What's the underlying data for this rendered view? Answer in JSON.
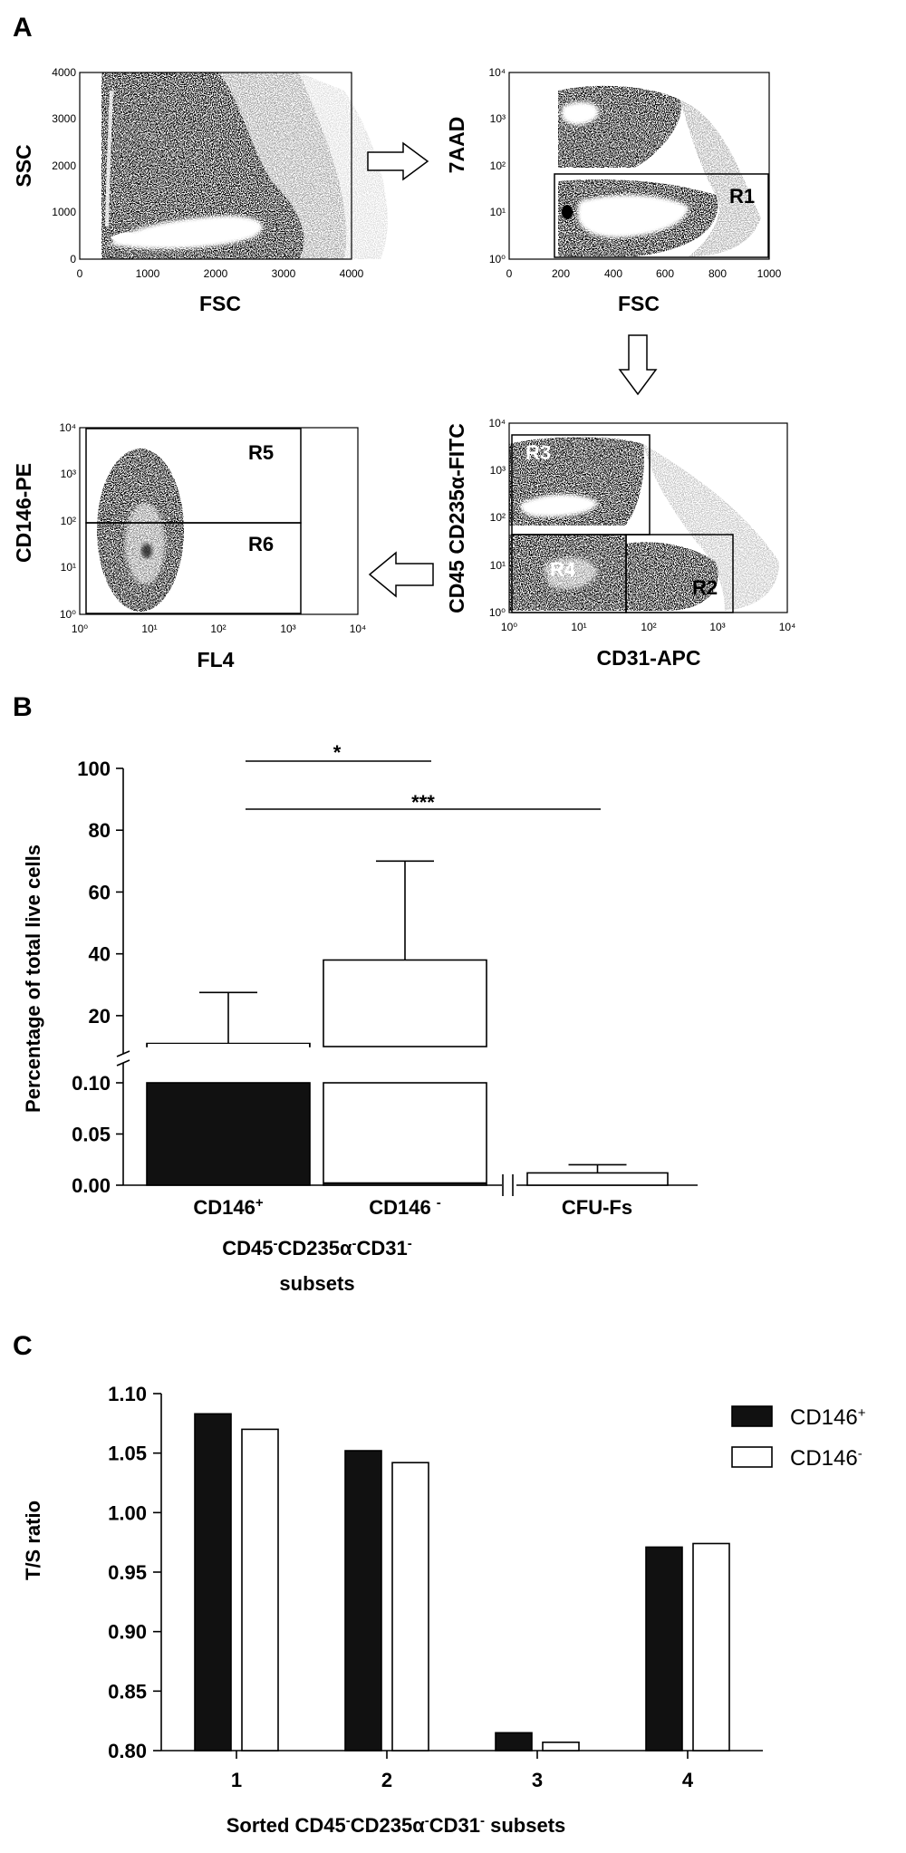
{
  "panels": {
    "a": "A",
    "b": "B",
    "c": "C"
  },
  "flow_plots": [
    {
      "id": "fsc-ssc",
      "x_label": "FSC",
      "y_label": "SSC",
      "x_ticks": [
        "0",
        "1000",
        "2000",
        "3000",
        "4000"
      ],
      "y_ticks": [
        "0",
        "1000",
        "2000",
        "3000",
        "4000"
      ],
      "gates": []
    },
    {
      "id": "fsc-7aad",
      "x_label": "FSC",
      "y_label": "7AAD",
      "x_ticks": [
        "0",
        "200",
        "400",
        "600",
        "800",
        "1000"
      ],
      "y_ticks": [
        "10⁰",
        "10¹",
        "10²",
        "10³",
        "10⁴"
      ],
      "gates": [
        "R1"
      ]
    },
    {
      "id": "cd31-cd45",
      "x_label": "CD31-APC",
      "y_label": "CD45 CD235α-FITC",
      "x_ticks": [
        "10⁰",
        "10¹",
        "10²",
        "10³",
        "10⁴"
      ],
      "y_ticks": [
        "10⁰",
        "10¹",
        "10²",
        "10³",
        "10⁴"
      ],
      "gates": [
        "R3",
        "R4",
        "R2"
      ]
    },
    {
      "id": "fl4-cd146",
      "x_label": "FL4",
      "y_label": "CD146-PE",
      "x_ticks": [
        "10⁰",
        "10¹",
        "10²",
        "10³",
        "10⁴"
      ],
      "y_ticks": [
        "10⁰",
        "10¹",
        "10²",
        "10³",
        "10⁴"
      ],
      "gates": [
        "R5",
        "R6"
      ]
    }
  ],
  "chart_data": [
    {
      "type": "bar",
      "ylabel": "Percentage of total live cells",
      "categories": [
        {
          "name": "CD146",
          "sup": "+"
        },
        {
          "name": "CD146 ",
          "sup": "-"
        },
        {
          "name": "CFU-Fs",
          "sup": ""
        }
      ],
      "values": [
        11.0,
        38.0,
        0.012
      ],
      "errors_upper": [
        27.5,
        70.0,
        0.02
      ],
      "y_ticks_lower": [
        "0.00",
        "0.05",
        "0.10"
      ],
      "y_ticks_upper": [
        "20",
        "40",
        "60",
        "80",
        "100"
      ],
      "bar_colors": [
        "#111111",
        "#ffffff",
        "#ffffff"
      ],
      "significance": [
        {
          "label": "*",
          "from": "CD146+",
          "to": "CD146-"
        },
        {
          "label": "***",
          "from": "CD146+",
          "to": "CFU-Fs"
        }
      ],
      "group_label_line1": "CD45 CD235α CD31",
      "group_label_line2": "subsets",
      "group_label_sups": [
        "-",
        "-",
        "-"
      ]
    },
    {
      "type": "bar",
      "ylabel": "T/S ratio",
      "xlabel": "Sorted CD45 CD235α CD31  subsets",
      "xlabel_sups": [
        "-",
        "-",
        "-"
      ],
      "categories": [
        "1",
        "2",
        "3",
        "4"
      ],
      "ylim": [
        0.8,
        1.1
      ],
      "y_ticks": [
        "0.80",
        "0.85",
        "0.90",
        "0.95",
        "1.00",
        "1.05",
        "1.10"
      ],
      "series": [
        {
          "name": "CD146",
          "sup": "+",
          "color": "#111111",
          "values": [
            1.083,
            1.052,
            0.815,
            0.971
          ]
        },
        {
          "name": "CD146",
          "sup": "-",
          "color": "#ffffff",
          "values": [
            1.07,
            1.042,
            0.807,
            0.974
          ]
        }
      ],
      "legend": "right"
    }
  ]
}
